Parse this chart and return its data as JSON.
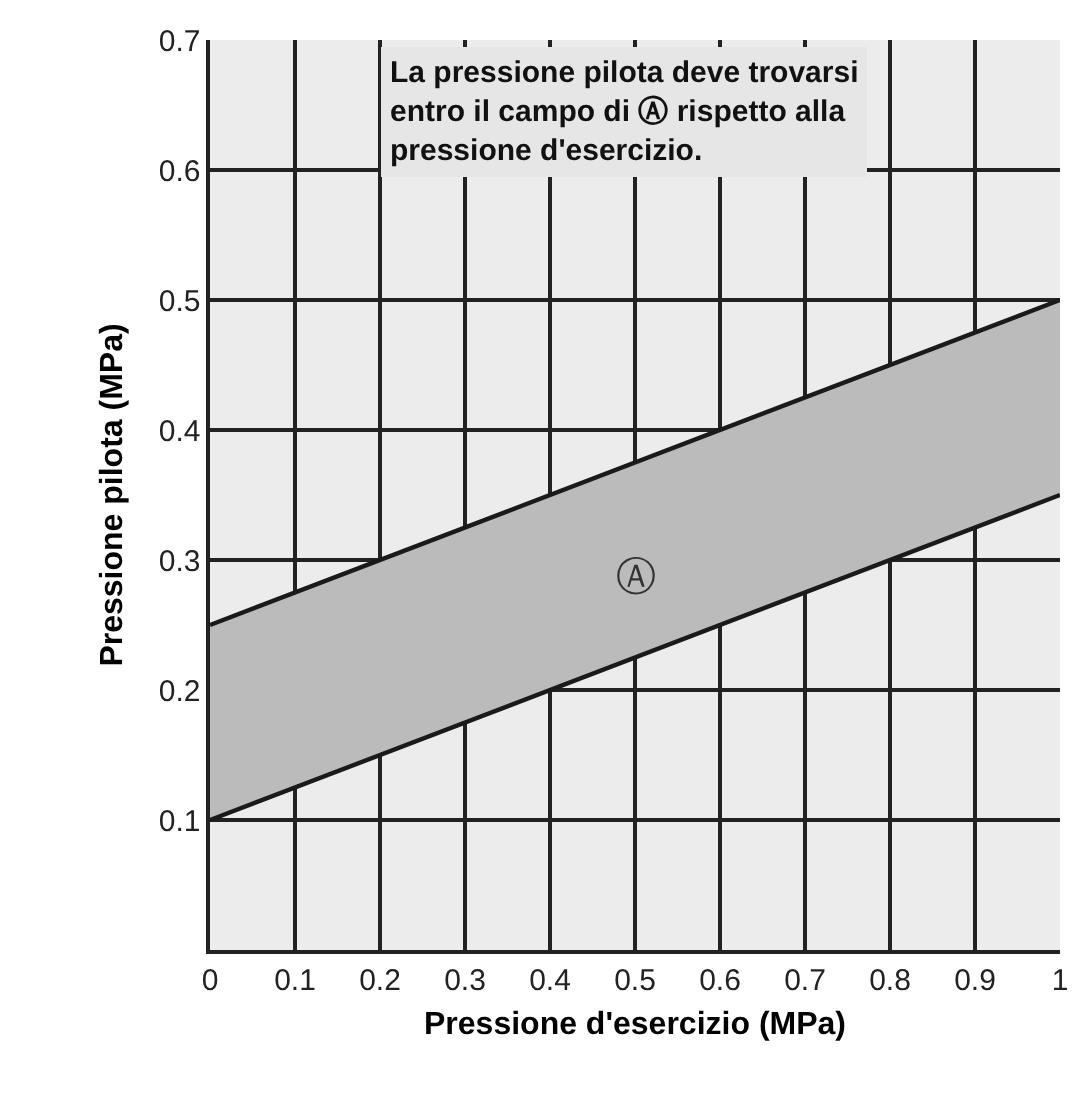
{
  "chart_data": {
    "type": "line",
    "xlabel": "Pressione d'esercizio (MPa)",
    "ylabel": "Pressione pilota (MPa)",
    "x": [
      0,
      1
    ],
    "series": [
      {
        "color": "#1a1a1a",
        "values": [
          0.1,
          0.35
        ]
      },
      {
        "type": "area",
        "color": "#bbbbbb",
        "values": [
          0.25,
          0.5
        ]
      }
    ],
    "annotations": [
      "La pressione pilota deve trovarsi\nentro il campo di Ⓐ rispetto alla\npressione d'esercizio.",
      "Ⓐ"
    ],
    "xlim": [
      0,
      1
    ],
    "xticks": [
      0,
      0.1,
      0.2,
      0.3,
      0.4,
      0.5,
      0.6,
      0.7,
      0.8,
      0.9,
      1
    ],
    "ylim": [
      0,
      0.7
    ],
    "yticks": [
      {
        "value": 0,
        "label": null
      },
      0.1,
      0.2,
      0.3,
      0.4,
      0.5,
      0.6,
      0.7
    ],
    "grid": true,
    "marker": "none",
    "line_style": "solid"
  }
}
